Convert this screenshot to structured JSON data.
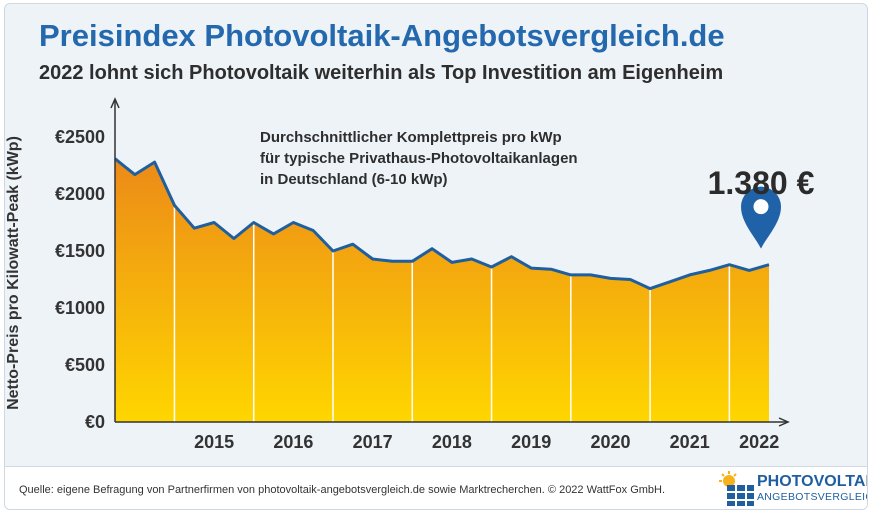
{
  "header": {
    "title": "Preisindex Photovoltaik-Angebotsvergleich.de",
    "subtitle": "2022 lohnt sich Photovoltaik weiterhin als Top Investition am Eigenheim"
  },
  "annotation": {
    "line1": "Durchschnittlicher Komplettpreis pro kWp",
    "line2": "für typische Privathaus-Photovoltaikanlagen",
    "line3": "in Deutschland (6-10 kWp)"
  },
  "highlight": {
    "value_label": "1.380 €",
    "icon": "map-pin-icon"
  },
  "footer": {
    "source": "Quelle: eigene Befragung von Partnerfirmen von photovoltaik-angebotsvergleich.de sowie Marktrecherchen. © 2022 WattFox GmbH.",
    "logo_line1": "PHOTOVOLTAIK",
    "logo_line2": "ANGEBOTSVERGLEICH"
  },
  "colors": {
    "title": "#2468ad",
    "line": "#1f5f9f",
    "area_top": "#ec8a18",
    "area_bottom": "#ffd600",
    "pin": "#1f62a8"
  },
  "chart_data": {
    "type": "area",
    "ylabel": "Netto-Preis pro Kilowatt-Peak (kWp)",
    "xlabel": "",
    "ylim": [
      0,
      2500
    ],
    "yticks": [
      0,
      500,
      1000,
      1500,
      2000,
      2500
    ],
    "ytick_labels": [
      "€0",
      "€500",
      "€1000",
      "€1500",
      "€2000",
      "€2500"
    ],
    "xtick_labels": [
      "2015",
      "2016",
      "2017",
      "2018",
      "2019",
      "2020",
      "2021",
      "2022"
    ],
    "x": [
      "2014-Q2",
      "2014-Q3",
      "2014-Q4",
      "2015-Q1",
      "2015-Q2",
      "2015-Q3",
      "2015-Q4",
      "2016-Q1",
      "2016-Q2",
      "2016-Q3",
      "2016-Q4",
      "2017-Q1",
      "2017-Q2",
      "2017-Q3",
      "2017-Q4",
      "2018-Q1",
      "2018-Q2",
      "2018-Q3",
      "2018-Q4",
      "2019-Q1",
      "2019-Q2",
      "2019-Q3",
      "2019-Q4",
      "2020-Q1",
      "2020-Q2",
      "2020-Q3",
      "2020-Q4",
      "2021-Q1",
      "2021-Q2",
      "2021-Q3",
      "2021-Q4",
      "2022-Q1",
      "2022-Q2",
      "2022-Q3"
    ],
    "series": [
      {
        "values": [
          2310,
          2170,
          2280,
          1900,
          1700,
          1750,
          1610,
          1750,
          1650,
          1750,
          1680,
          1500,
          1560,
          1430,
          1410,
          1410,
          1520,
          1400,
          1430,
          1360,
          1450,
          1350,
          1340,
          1290,
          1290,
          1260,
          1250,
          1170,
          1230,
          1290,
          1330,
          1380,
          1330,
          1380
        ]
      }
    ],
    "last_value": 1380,
    "grid": false
  }
}
